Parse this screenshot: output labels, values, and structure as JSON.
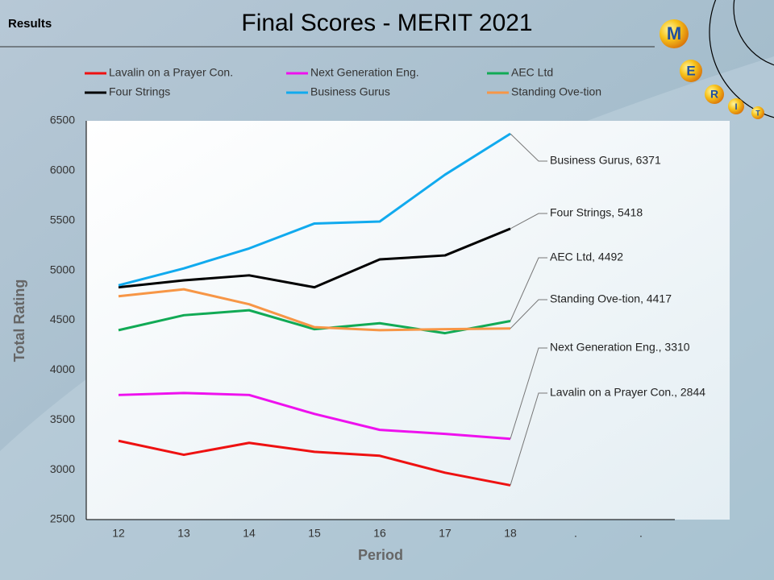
{
  "header": {
    "section": "Results",
    "logo_letters": [
      "M",
      "E",
      "R",
      "I",
      "T"
    ]
  },
  "chart_data": {
    "type": "line",
    "title": "Final Scores - MERIT 2021",
    "x_label": "Period",
    "y_label": "Total Rating",
    "categories": [
      "12",
      "13",
      "14",
      "15",
      "16",
      "17",
      "18",
      ".",
      "."
    ],
    "ylim": [
      2500,
      6500
    ],
    "yticks": [
      2500,
      3000,
      3500,
      4000,
      4500,
      5000,
      5500,
      6000,
      6500
    ],
    "grid": false,
    "legend": "top",
    "series": [
      {
        "name": "Lavalin on a Prayer Con.",
        "color": "#ee1111",
        "values": [
          3290,
          3150,
          3270,
          3180,
          3140,
          2970,
          2844,
          null,
          null
        ],
        "value_labels": [
          null,
          null,
          null,
          null,
          null,
          null,
          "Lavalin on a Prayer Con., 2844",
          null,
          null
        ]
      },
      {
        "name": "Next Generation Eng.",
        "color": "#ee11ee",
        "values": [
          3750,
          3770,
          3750,
          3560,
          3400,
          3360,
          3310,
          null,
          null
        ],
        "value_labels": [
          null,
          null,
          null,
          null,
          null,
          null,
          "Next Generation Eng., 3310",
          null,
          null
        ]
      },
      {
        "name": "AEC Ltd",
        "color": "#11aa55",
        "values": [
          4400,
          4550,
          4600,
          4410,
          4470,
          4370,
          4492,
          null,
          null
        ],
        "value_labels": [
          null,
          null,
          null,
          null,
          null,
          null,
          "AEC Ltd, 4492",
          null,
          null
        ]
      },
      {
        "name": "Four Strings",
        "color": "#000000",
        "values": [
          4830,
          4900,
          4950,
          4830,
          5110,
          5150,
          5418,
          null,
          null
        ],
        "value_labels": [
          null,
          null,
          null,
          null,
          null,
          null,
          "Four Strings, 5418",
          null,
          null
        ]
      },
      {
        "name": "Business Gurus",
        "color": "#11aaee",
        "values": [
          4850,
          5020,
          5220,
          5470,
          5490,
          5960,
          6371,
          null,
          null
        ],
        "value_labels": [
          null,
          null,
          null,
          null,
          null,
          null,
          "Business Gurus,  6371",
          null,
          null
        ]
      },
      {
        "name": "Standing Ove-tion",
        "color": "#f79646",
        "values": [
          4740,
          4810,
          4660,
          4430,
          4400,
          4410,
          4417,
          null,
          null
        ],
        "value_labels": [
          null,
          null,
          null,
          null,
          null,
          null,
          "Standing Ove-tion,  4417",
          null,
          null
        ]
      }
    ]
  }
}
